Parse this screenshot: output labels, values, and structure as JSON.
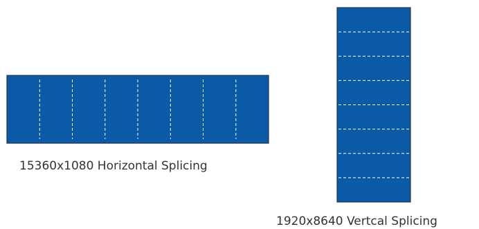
{
  "colors": {
    "panel_fill": "#0b5aa8",
    "panel_border": "#1f3550",
    "divider": "#ffffff"
  },
  "horizontal": {
    "caption": "15360x1080 Horizontal Splicing",
    "segments": 8
  },
  "vertical": {
    "caption": "1920x8640 Vertcal Splicing",
    "segments": 8
  }
}
